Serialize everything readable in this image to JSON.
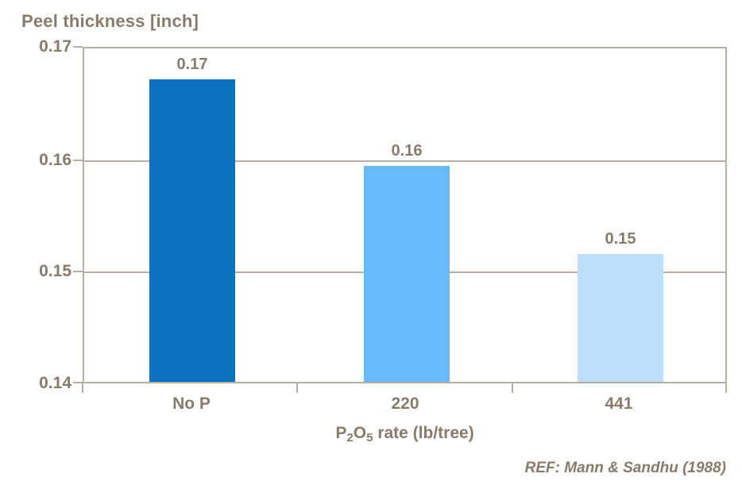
{
  "chart_data": {
    "type": "bar",
    "title": "Peel thickness [inch]",
    "xlabel": "P2O5 rate (lb/tree)",
    "xlabel_parts": {
      "p": "P",
      "sub_2": "2",
      "o": "O",
      "sub_5": "5",
      "rest": " rate (lb/tree)"
    },
    "ylabel": "",
    "categories": [
      "No P",
      "220",
      "441"
    ],
    "values": [
      0.1672,
      0.1594,
      0.1515
    ],
    "bar_labels": [
      "0.17",
      "0.16",
      "0.15"
    ],
    "ylim": [
      0.14,
      0.17
    ],
    "yticks": [
      "0.17",
      "0.16",
      "0.15",
      "0.14"
    ],
    "grid": "horizontal",
    "legend": "none",
    "reference": "REF: Mann & Sandhu (1988)",
    "colors": {
      "bars": [
        "#0a72c0",
        "#67bbfa",
        "#bedffc"
      ],
      "text": "#8a7a68",
      "line": "#b9aea4",
      "background": "#ffffff"
    }
  }
}
